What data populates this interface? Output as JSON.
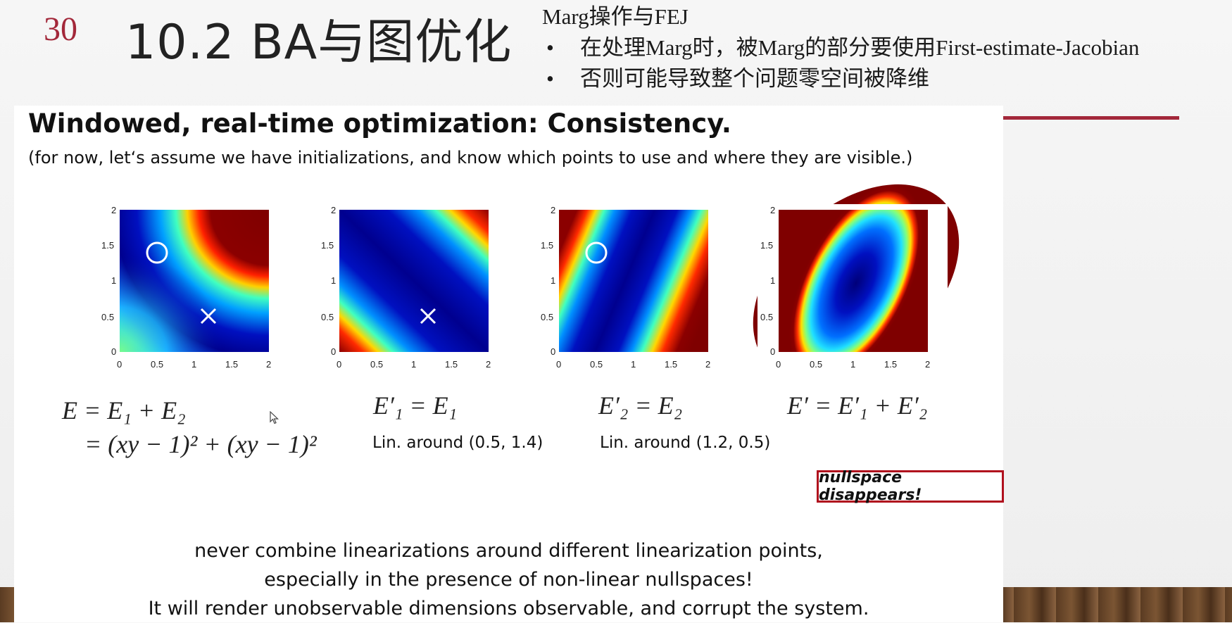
{
  "slide": {
    "page_number": "30",
    "title": "10.2 BA与图优化"
  },
  "notes": {
    "heading": "Marg操作与FEJ",
    "bullets": [
      "在处理Marg时，被Marg的部分要使用First-estimate-Jacobian",
      "否则可能导致整个问题零空间被降维"
    ],
    "bullet_symbol": "•"
  },
  "panel": {
    "title": "Windowed, real-time optimization: Consistency.",
    "subtitle": "(for now, let‘s assume we have initializations, and know which points to use and where they are visible.)",
    "plots": [
      {
        "markers": [
          "circle",
          "cross"
        ],
        "circle": [
          0.5,
          1.4
        ],
        "cross": [
          1.2,
          0.5
        ]
      },
      {
        "markers": [
          "cross"
        ],
        "cross": [
          1.2,
          0.5
        ]
      },
      {
        "markers": [
          "circle"
        ],
        "circle": [
          0.5,
          1.4
        ]
      },
      {
        "markers": []
      }
    ],
    "axis": {
      "x_ticks": [
        "0",
        "0.5",
        "1",
        "1.5",
        "2"
      ],
      "y_ticks": [
        "0",
        "0.5",
        "1",
        "1.5",
        "2"
      ],
      "range": [
        0,
        2
      ]
    },
    "equations": {
      "e_line1": "E = E₁ + E₂",
      "e_line2": "= (xy − 1)² + (xy − 1)²",
      "e1": "E′₁ = E₁",
      "e2": "E′₂ = E₂",
      "ep": "E′ = E′₁ + E′₂"
    },
    "captions": {
      "lin1": "Lin. around (0.5, 1.4)",
      "lin2": "Lin. around (1.2, 0.5)"
    },
    "nullspace_label": "nullspace disappears!",
    "conclusion": [
      "never combine linearizations around different linearization points,",
      "especially in the presence of non-linear nullspaces!",
      "It will render unobservable dimensions observable, and corrupt the system."
    ]
  },
  "colors": {
    "accent": "#a3283a",
    "box_border": "#b0101d"
  }
}
